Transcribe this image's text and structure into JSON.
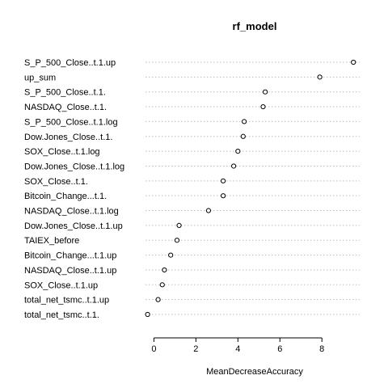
{
  "chart_data": {
    "type": "scatter",
    "subtype": "dotchart",
    "title": "rf_model",
    "xlabel": "MeanDecreaseAccuracy",
    "ylabel": "",
    "xlim": [
      -0.4,
      9.8
    ],
    "xticks": [
      0,
      2,
      4,
      6,
      8
    ],
    "grid": "dotted horizontal",
    "categories": [
      "S_P_500_Close..t.1.up",
      "up_sum",
      "S_P_500_Close..t.1.",
      "NASDAQ_Close..t.1.",
      "S_P_500_Close..t.1.log",
      "Dow.Jones_Close..t.1.",
      "SOX_Close..t.1.log",
      "Dow.Jones_Close..t.1.log",
      "SOX_Close..t.1.",
      "Bitcoin_Change...t.1.",
      "NASDAQ_Close..t.1.log",
      "Dow.Jones_Close..t.1.up",
      "TAIEX_before",
      "Bitcoin_Change...t.1.up",
      "NASDAQ_Close..t.1.up",
      "SOX_Close..t.1.up",
      "total_net_tsmc..t.1.up",
      "total_net_tsmc..t.1."
    ],
    "values": [
      9.5,
      7.9,
      5.3,
      5.2,
      4.3,
      4.25,
      4.0,
      3.8,
      3.3,
      3.3,
      2.6,
      1.2,
      1.1,
      0.8,
      0.5,
      0.4,
      0.2,
      -0.3
    ]
  }
}
